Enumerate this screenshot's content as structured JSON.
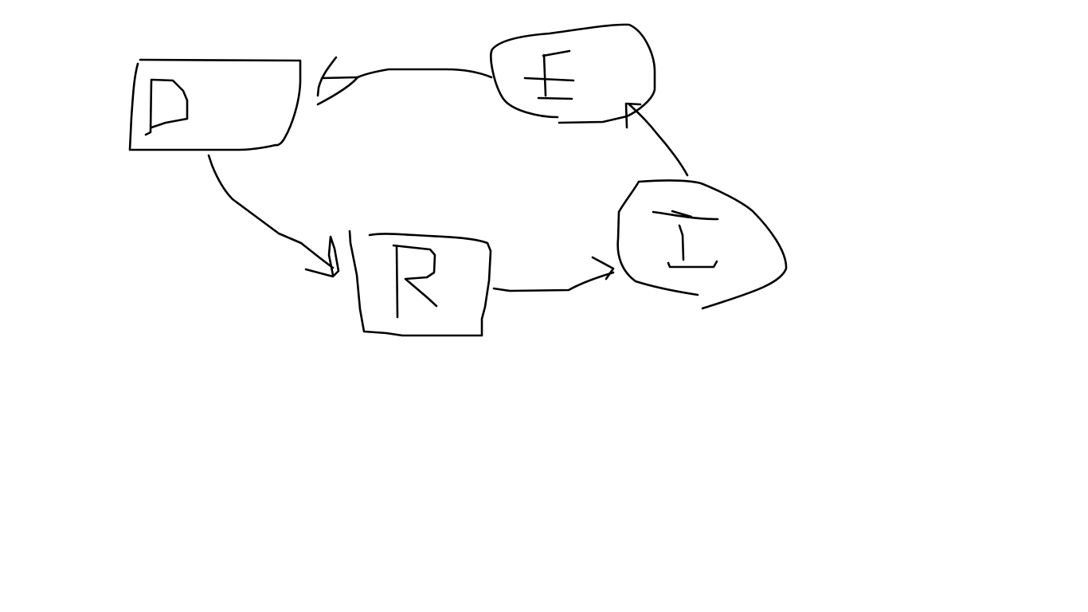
{
  "diagram": {
    "background_color": "#ffffff",
    "stroke_color": "#000000",
    "nodes": [
      {
        "id": "D",
        "label": "D",
        "shape": "rectangle"
      },
      {
        "id": "E",
        "label": "E",
        "shape": "blob"
      },
      {
        "id": "R",
        "label": "R",
        "shape": "rectangle"
      },
      {
        "id": "I",
        "label": "I",
        "shape": "blob"
      }
    ],
    "edges": [
      {
        "from": "D",
        "to": "R"
      },
      {
        "from": "R",
        "to": "I"
      },
      {
        "from": "I",
        "to": "E"
      },
      {
        "from": "E",
        "to": "D"
      }
    ]
  }
}
